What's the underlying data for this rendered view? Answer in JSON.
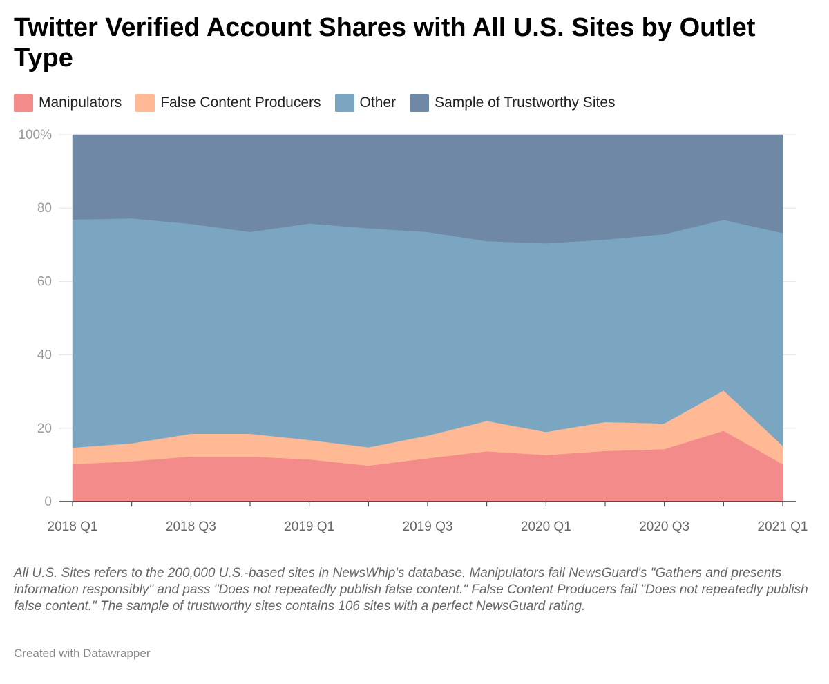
{
  "chart_data": {
    "type": "area",
    "stacked": true,
    "percent": true,
    "title": "Twitter Verified Account Shares with All U.S. Sites by Outlet Type",
    "x": [
      "2018 Q1",
      "2018 Q2",
      "2018 Q3",
      "2018 Q4",
      "2019 Q1",
      "2019 Q2",
      "2019 Q3",
      "2019 Q4",
      "2020 Q1",
      "2020 Q2",
      "2020 Q3",
      "2020 Q4",
      "2021 Q1"
    ],
    "x_tick_labels": [
      "2018 Q1",
      "2018 Q3",
      "2019 Q1",
      "2019 Q3",
      "2020 Q1",
      "2020 Q3",
      "2021 Q1"
    ],
    "y_ticks": [
      "0",
      "20",
      "40",
      "60",
      "80",
      "100%"
    ],
    "ylim": [
      0,
      100
    ],
    "grid": true,
    "legend_position": "top-left",
    "series": [
      {
        "name": "Manipulators",
        "color": "#f28b89",
        "values": [
          10.2,
          11.0,
          12.3,
          12.3,
          11.5,
          9.8,
          11.8,
          13.7,
          12.7,
          13.8,
          14.3,
          19.3,
          10.2
        ]
      },
      {
        "name": "False Content Producers",
        "color": "#ffb994",
        "values": [
          4.5,
          4.9,
          6.2,
          6.2,
          5.3,
          5.0,
          6.2,
          8.3,
          6.3,
          7.9,
          7.0,
          11.0,
          5.0
        ]
      },
      {
        "name": "Other",
        "color": "#7aa6c2",
        "values": [
          62.2,
          61.3,
          57.2,
          55.0,
          59.0,
          59.7,
          55.5,
          49.0,
          51.4,
          49.7,
          51.6,
          46.5,
          58.0
        ]
      },
      {
        "name": "Sample of Trustworthy Sites",
        "color": "#6f88a6",
        "values": [
          23.1,
          22.8,
          24.3,
          26.5,
          24.2,
          25.5,
          26.5,
          29.0,
          29.6,
          28.6,
          27.1,
          23.2,
          26.8
        ]
      }
    ]
  },
  "notes": "All U.S. Sites refers to the 200,000 U.S.-based sites in NewsWhip's database. Manipulators fail NewsGuard's \"Gathers and presents information responsibly\" and pass \"Does not repeatedly publish false content.\" False Content Producers fail \"Does not repeatedly publish false content.\" The sample of trustworthy sites contains 106 sites with a perfect NewsGuard rating.",
  "credit": "Created with Datawrapper"
}
